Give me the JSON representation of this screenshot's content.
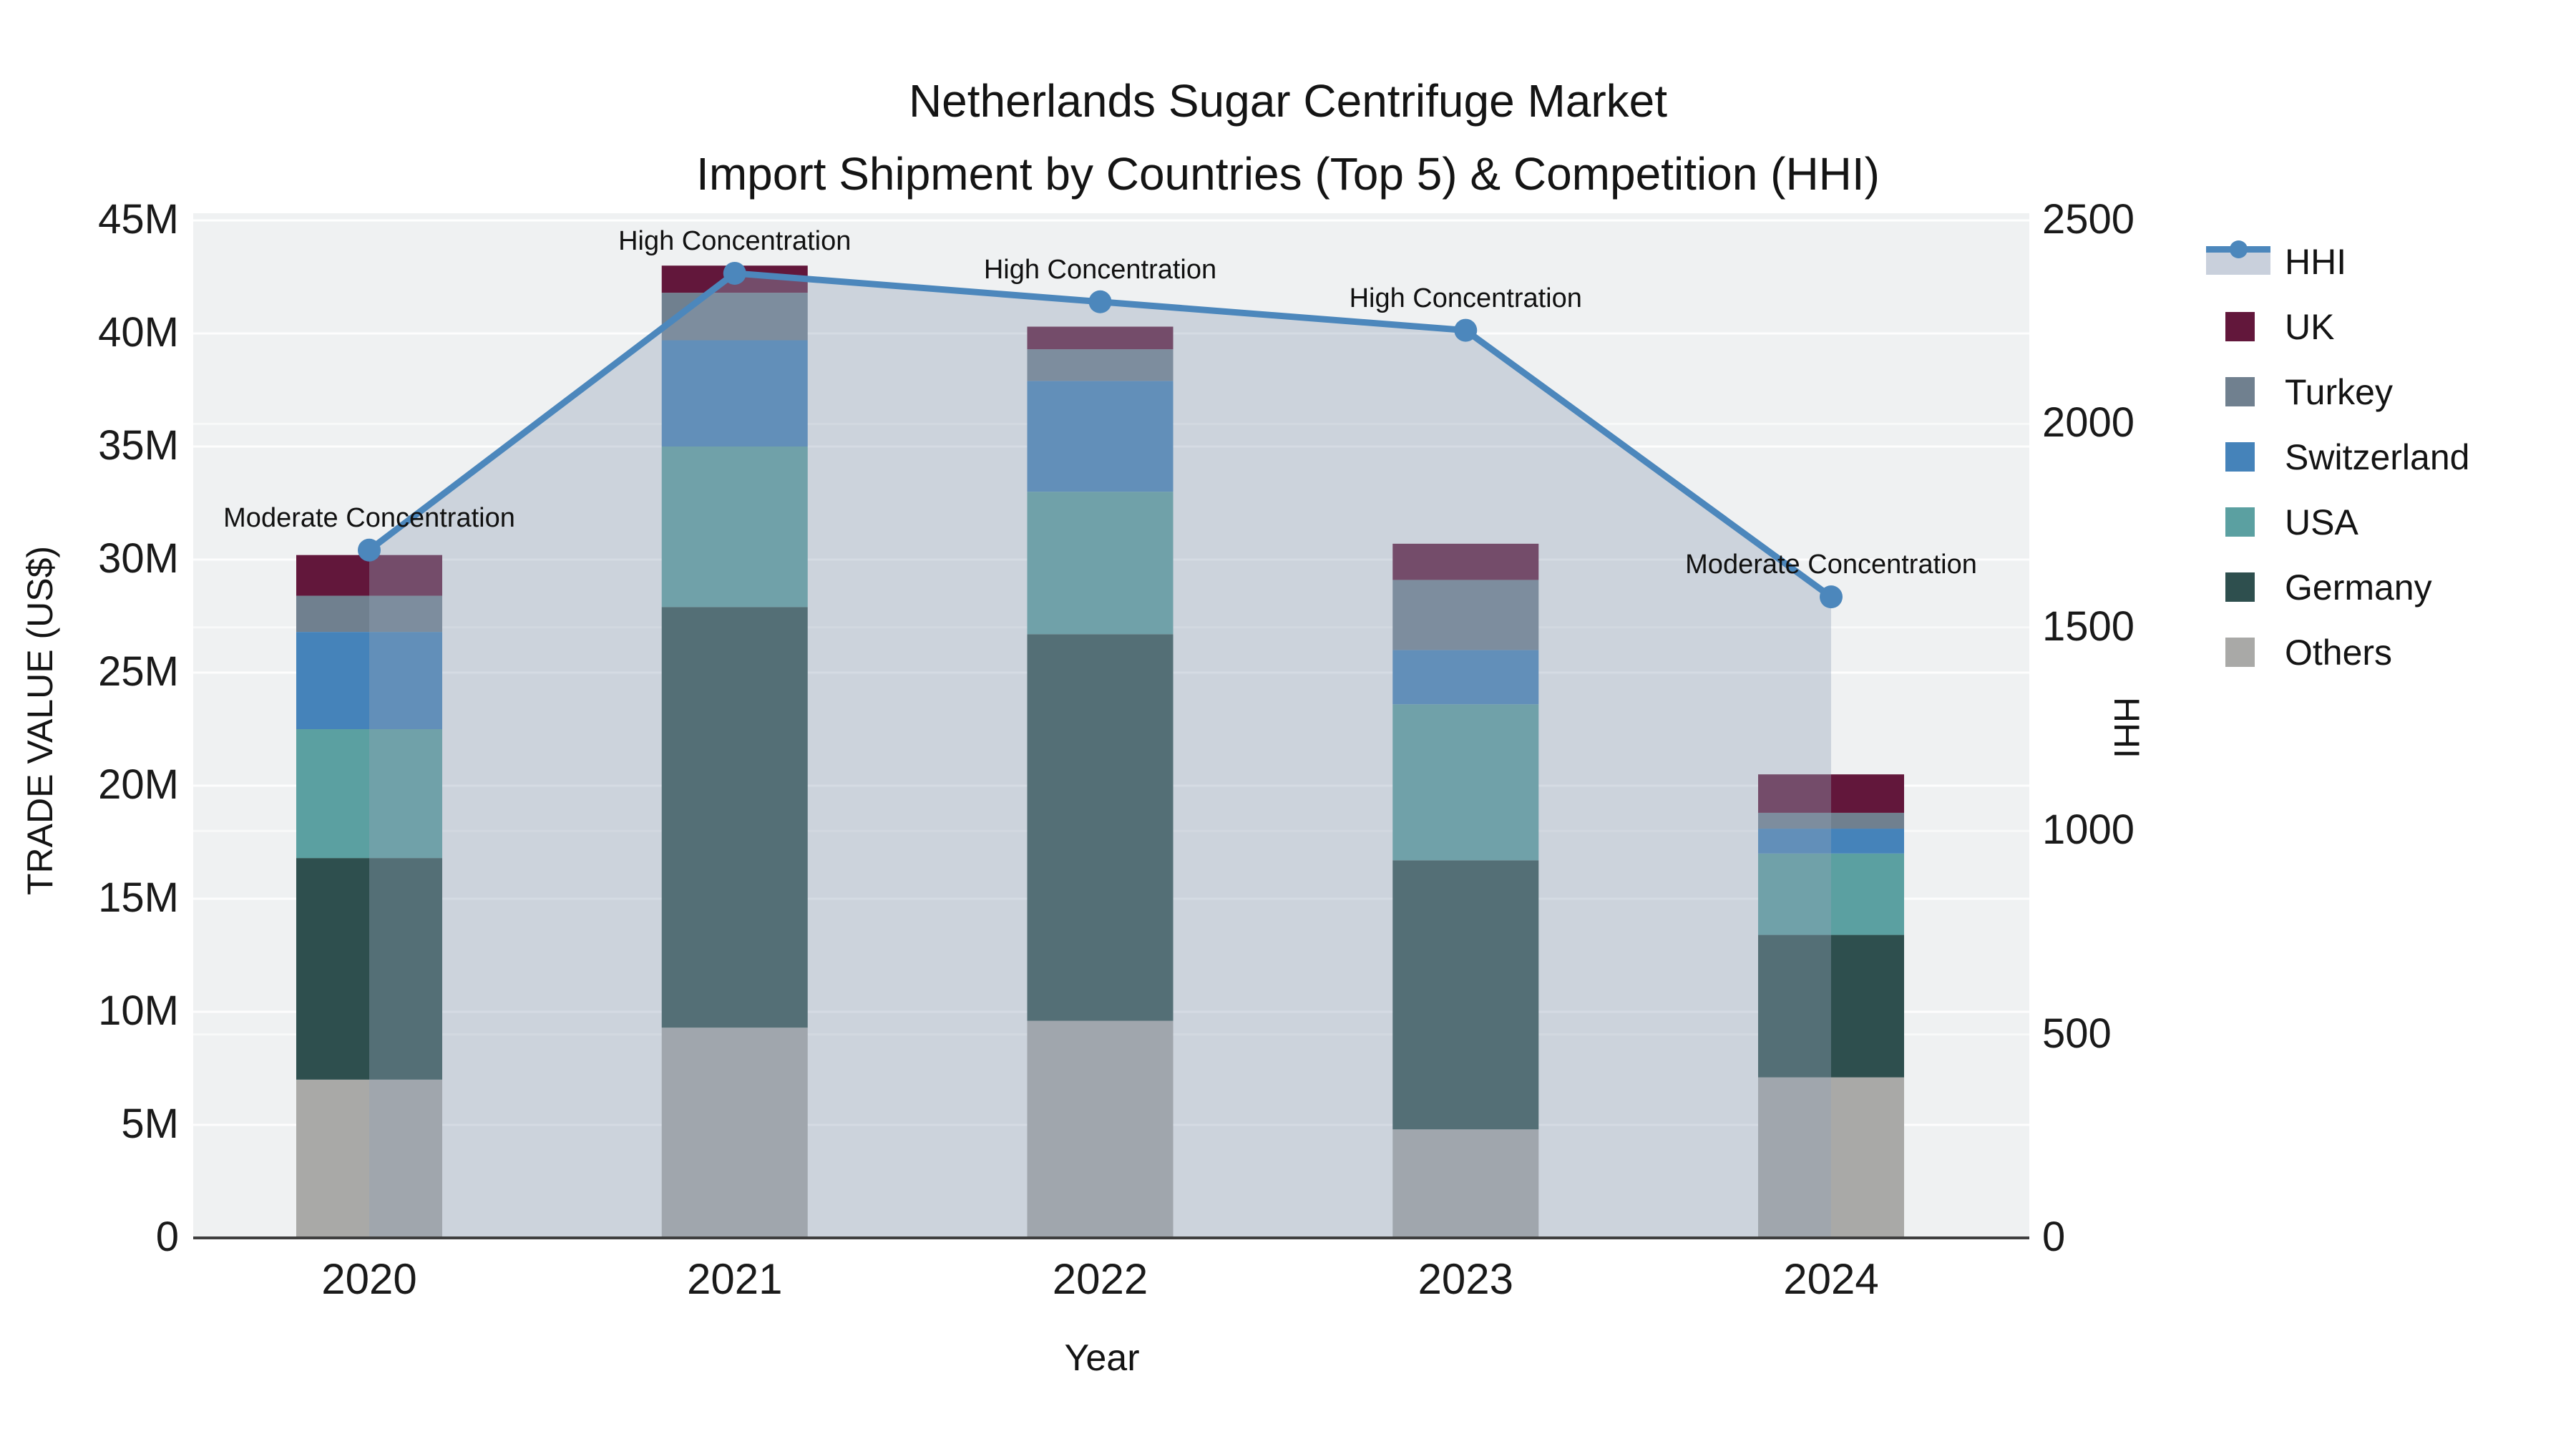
{
  "title": {
    "line1": "Netherlands Sugar Centrifuge Market",
    "line2": "Import Shipment by Countries (Top 5) & Competition (HHI)"
  },
  "axes": {
    "y_left_title": "TRADE VALUE (US$)",
    "y_right_title": "HHI",
    "x_title": "Year",
    "y_left_ticks": [
      "0",
      "5M",
      "10M",
      "15M",
      "20M",
      "25M",
      "30M",
      "35M",
      "40M",
      "45M"
    ],
    "y_left_tick_values_m": [
      0,
      5,
      10,
      15,
      20,
      25,
      30,
      35,
      40,
      45
    ],
    "y_right_ticks": [
      "0",
      "500",
      "1000",
      "1500",
      "2000",
      "2500"
    ],
    "y_right_tick_values": [
      0,
      500,
      1000,
      1500,
      2000,
      2500
    ],
    "x_ticks": [
      "2020",
      "2021",
      "2022",
      "2023",
      "2024"
    ]
  },
  "legend": {
    "items": [
      {
        "label": "HHI",
        "type": "line",
        "color": "#4C87BC"
      },
      {
        "label": "UK",
        "type": "swatch",
        "color": "#62173B"
      },
      {
        "label": "Turkey",
        "type": "swatch",
        "color": "#70808F"
      },
      {
        "label": "Switzerland",
        "type": "swatch",
        "color": "#4583BA"
      },
      {
        "label": "USA",
        "type": "swatch",
        "color": "#5BA0A1"
      },
      {
        "label": "Germany",
        "type": "swatch",
        "color": "#2E4F4E"
      },
      {
        "label": "Others",
        "type": "swatch",
        "color": "#A9A9A7"
      }
    ]
  },
  "chart_data": {
    "type": "bar+line",
    "title": "Netherlands Sugar Centrifuge Market — Import Shipment by Countries (Top 5) & Competition (HHI)",
    "categories": [
      "2020",
      "2021",
      "2022",
      "2023",
      "2024"
    ],
    "units": "US$ millions (stacked bars, left axis) and HHI index (line, right axis)",
    "series": [
      {
        "name": "Others",
        "color": "#A9A9A7",
        "values": [
          7.0,
          9.3,
          9.6,
          4.8,
          7.1
        ]
      },
      {
        "name": "Germany",
        "color": "#2E4F4E",
        "values": [
          9.8,
          18.6,
          17.1,
          11.9,
          6.3
        ]
      },
      {
        "name": "USA",
        "color": "#5BA0A1",
        "values": [
          5.7,
          7.1,
          6.3,
          6.9,
          3.6
        ]
      },
      {
        "name": "Switzerland",
        "color": "#4583BA",
        "values": [
          4.3,
          4.7,
          4.9,
          2.4,
          1.1
        ]
      },
      {
        "name": "Turkey",
        "color": "#70808F",
        "values": [
          1.6,
          2.1,
          1.4,
          3.1,
          0.7
        ]
      },
      {
        "name": "UK",
        "color": "#62173B",
        "values": [
          1.8,
          1.2,
          1.0,
          1.6,
          1.7
        ]
      }
    ],
    "bar_totals_m": [
      30.2,
      43.0,
      40.3,
      30.7,
      20.5
    ],
    "hhi": {
      "name": "HHI",
      "color": "#4C87BC",
      "values": [
        1690,
        2370,
        2300,
        2230,
        1575
      ],
      "area_fill": "#93A2B8",
      "area_opacity": 0.38
    },
    "annotations": [
      {
        "year": "2020",
        "text": "Moderate Concentration"
      },
      {
        "year": "2021",
        "text": "High Concentration"
      },
      {
        "year": "2022",
        "text": "High Concentration"
      },
      {
        "year": "2023",
        "text": "High Concentration"
      },
      {
        "year": "2024",
        "text": "Moderate Concentration"
      }
    ],
    "xlabel": "Year",
    "ylabel": "TRADE VALUE (US$)",
    "ylabel_right": "HHI",
    "ylim_left_m": [
      0,
      45
    ],
    "ylim_right": [
      0,
      2500
    ],
    "grid": true,
    "legend_position": "right",
    "colors": {
      "plot_bg": "#EFF1F2",
      "grid": "#FFFFFF",
      "axis_line": "#3F3F3F",
      "text": "#141414"
    }
  }
}
